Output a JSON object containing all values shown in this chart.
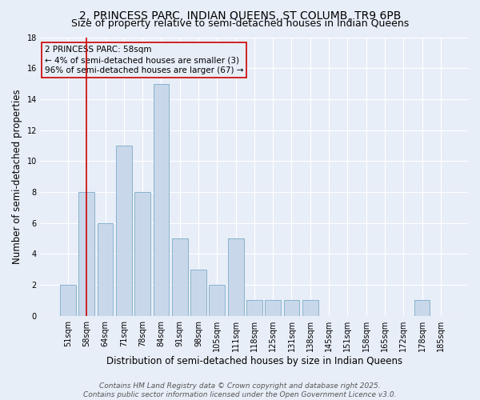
{
  "title": "2, PRINCESS PARC, INDIAN QUEENS, ST COLUMB, TR9 6PB",
  "subtitle": "Size of property relative to semi-detached houses in Indian Queens",
  "xlabel": "Distribution of semi-detached houses by size in Indian Queens",
  "ylabel": "Number of semi-detached properties",
  "categories": [
    "51sqm",
    "58sqm",
    "64sqm",
    "71sqm",
    "78sqm",
    "84sqm",
    "91sqm",
    "98sqm",
    "105sqm",
    "111sqm",
    "118sqm",
    "125sqm",
    "131sqm",
    "138sqm",
    "145sqm",
    "151sqm",
    "158sqm",
    "165sqm",
    "172sqm",
    "178sqm",
    "185sqm"
  ],
  "values": [
    2,
    8,
    6,
    11,
    8,
    15,
    5,
    3,
    2,
    5,
    1,
    1,
    1,
    1,
    0,
    0,
    0,
    0,
    0,
    1,
    0
  ],
  "bar_color": "#c8d8ea",
  "bar_edge_color": "#7aaac8",
  "highlight_bar_index": 1,
  "highlight_color": "#cc0000",
  "ylim": [
    0,
    18
  ],
  "yticks": [
    0,
    2,
    4,
    6,
    8,
    10,
    12,
    14,
    16,
    18
  ],
  "background_color": "#e8eef8",
  "grid_color": "#ffffff",
  "annotation_title": "2 PRINCESS PARC: 58sqm",
  "annotation_line1": "← 4% of semi-detached houses are smaller (3)",
  "annotation_line2": "96% of semi-detached houses are larger (67) →",
  "footer_line1": "Contains HM Land Registry data © Crown copyright and database right 2025.",
  "footer_line2": "Contains public sector information licensed under the Open Government Licence v3.0.",
  "title_fontsize": 10,
  "subtitle_fontsize": 9,
  "axis_label_fontsize": 8.5,
  "tick_fontsize": 7,
  "annotation_fontsize": 7.5,
  "footer_fontsize": 6.5
}
